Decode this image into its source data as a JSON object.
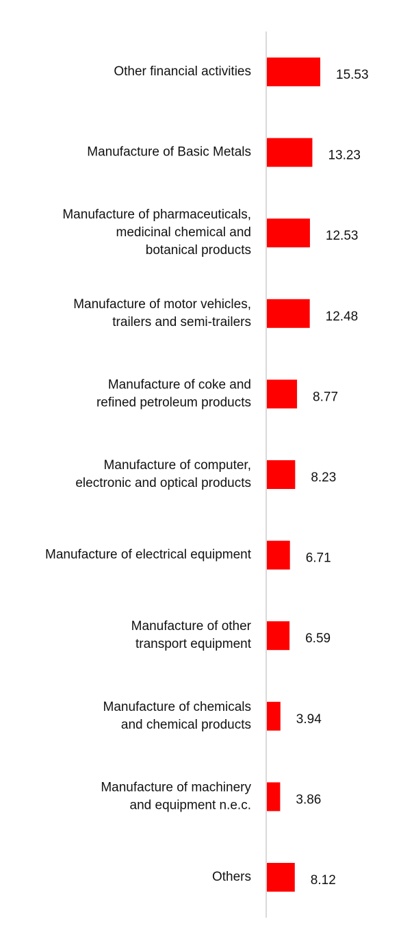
{
  "colors": {
    "bar": "#ff0000",
    "axis": "#d9d9d9",
    "text": "#111111",
    "background": "#ffffff"
  },
  "chart_data": {
    "type": "bar",
    "orientation": "horizontal",
    "grid": false,
    "legend": "none",
    "categories": [
      [
        "Other financial activities"
      ],
      [
        "Manufacture of Basic Metals"
      ],
      [
        "Manufacture of pharmaceuticals,",
        "medicinal chemical and",
        "botanical products"
      ],
      [
        "Manufacture of motor vehicles,",
        "trailers and semi-trailers"
      ],
      [
        "Manufacture of coke and",
        "refined petroleum products"
      ],
      [
        "Manufacture of computer,",
        "electronic and optical products"
      ],
      [
        "Manufacture of electrical equipment"
      ],
      [
        "Manufacture of other",
        "transport equipment"
      ],
      [
        "Manufacture of chemicals",
        "and chemical products"
      ],
      [
        "Manufacture of machinery",
        "and equipment n.e.c."
      ],
      [
        "Others"
      ]
    ],
    "values": [
      15.53,
      13.23,
      12.53,
      12.48,
      8.77,
      8.23,
      6.71,
      6.59,
      3.94,
      3.86,
      8.12
    ],
    "value_labels": [
      "15.53",
      "13.23",
      "12.53",
      "12.48",
      "8.77",
      "8.23",
      "6.71",
      "6.59",
      "3.94",
      "3.86",
      "8.12"
    ]
  }
}
